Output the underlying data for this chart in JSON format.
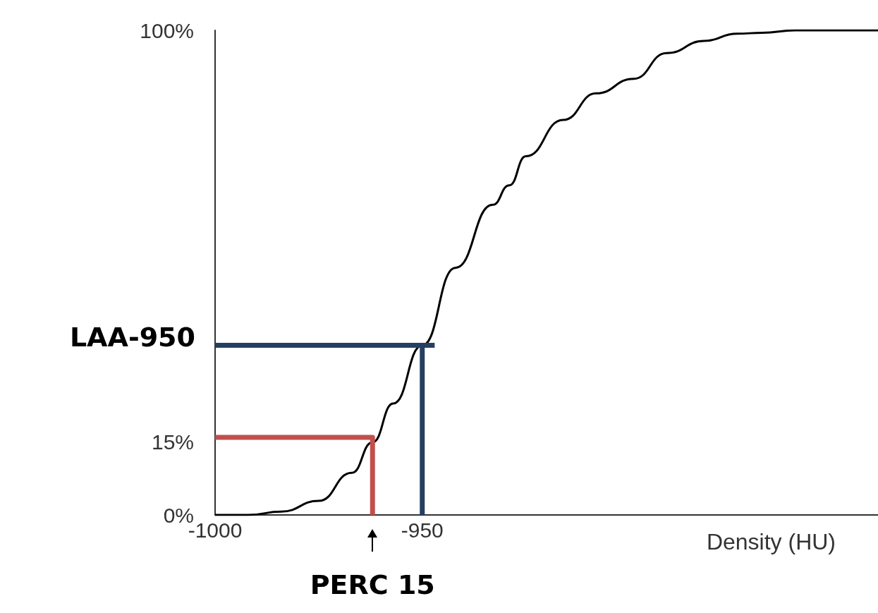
{
  "chart_data": {
    "type": "line",
    "xlabel": "Density (HU)",
    "xlim": [
      -1000,
      -840
    ],
    "xticks": [
      -1000,
      -950
    ],
    "ylim": [
      0,
      100
    ],
    "yticks": [
      {
        "value": 0,
        "label": "0%"
      },
      {
        "value": 15,
        "label": "15%"
      },
      {
        "value": 100,
        "label": "100%"
      }
    ],
    "grid": false,
    "marker": "none",
    "line_style": "solid",
    "series": [
      {
        "color": "#000000",
        "x": [
          -1000,
          -992,
          -984,
          -975,
          -967,
          -962,
          -957,
          -950,
          -942,
          -933,
          -929,
          -925,
          -916,
          -908,
          -899,
          -891,
          -882,
          -874,
          -868,
          -860,
          -840
        ],
        "values": [
          0,
          0,
          0.7,
          2.9,
          8.7,
          15,
          23,
          35,
          51,
          64,
          68,
          74,
          81.5,
          87,
          90,
          95.3,
          97.8,
          99.3,
          99.5,
          100,
          100
        ]
      },
      {
        "color": "#c0504d",
        "x": [
          -1000,
          -962,
          -962
        ],
        "values": [
          16,
          16,
          0
        ]
      },
      {
        "color": "#253f60",
        "x": [
          -1000,
          -947
        ],
        "values": [
          35,
          35
        ]
      },
      {
        "color": "#253f60",
        "x": [
          -950,
          -950
        ],
        "values": [
          35,
          0
        ]
      }
    ],
    "annotations": [
      {
        "text": "LAA-950",
        "x": -1000,
        "y": 35
      },
      {
        "text": "PERC 15",
        "x": -962,
        "y": 0
      }
    ]
  }
}
